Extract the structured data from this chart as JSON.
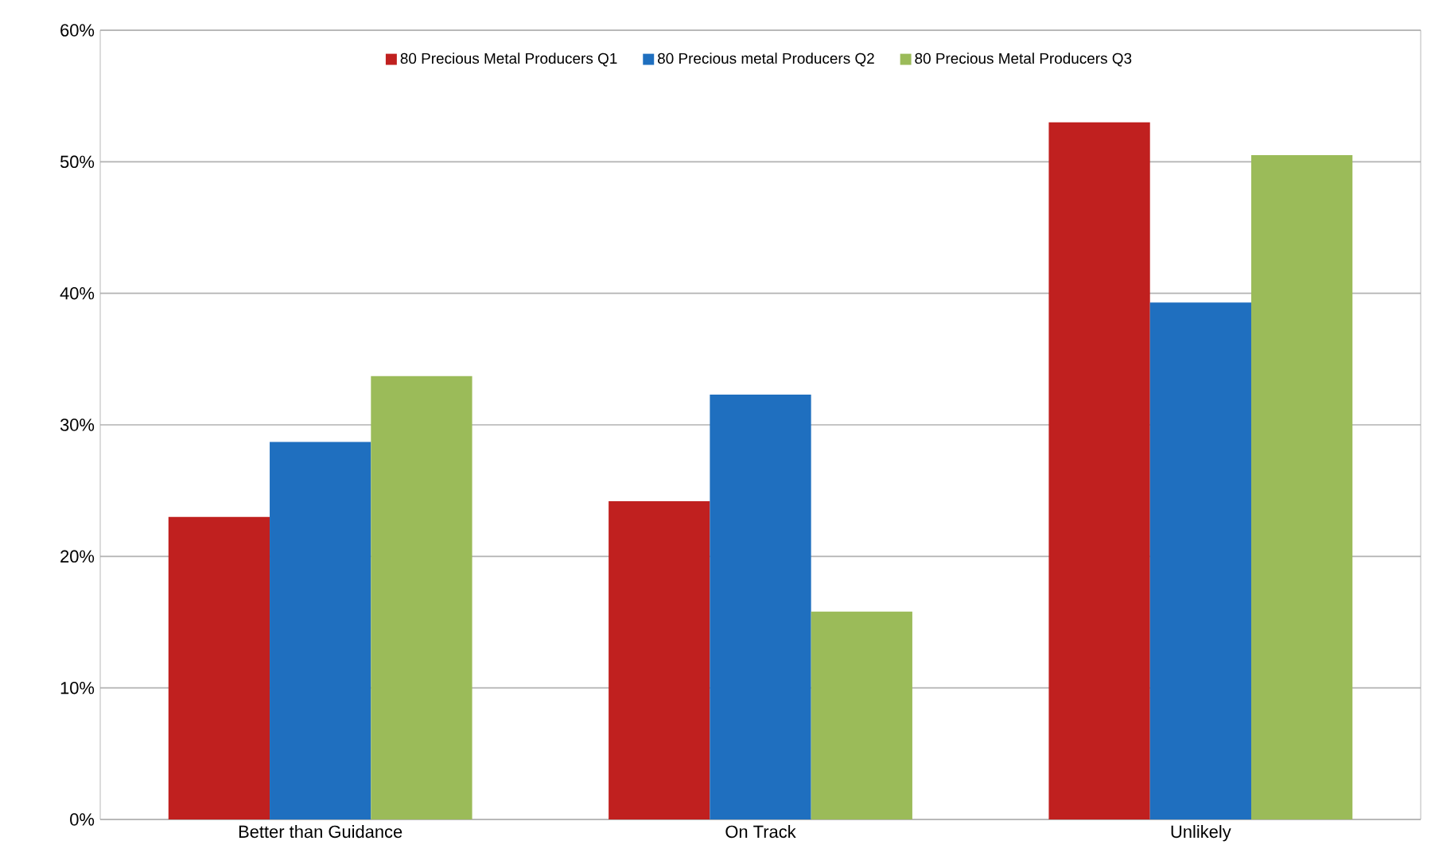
{
  "chart_data": {
    "type": "bar",
    "categories": [
      "Better than Guidance",
      "On Track",
      "Unlikely"
    ],
    "series": [
      {
        "name": "80 Precious Metal Producers Q1",
        "color": "#c0201f",
        "values": [
          23.0,
          24.2,
          53.0
        ]
      },
      {
        "name": "80 Precious metal Producers Q2",
        "color": "#1f6fbf",
        "values": [
          28.7,
          32.3,
          39.3
        ]
      },
      {
        "name": "80 Precious Metal Producers Q3",
        "color": "#9bbb59",
        "values": [
          33.7,
          15.8,
          50.5
        ]
      }
    ],
    "ylim": [
      0,
      60
    ],
    "yticks": [
      {
        "value": 0,
        "label": "0%"
      },
      {
        "value": 10,
        "label": "10%"
      },
      {
        "value": 20,
        "label": "20%"
      },
      {
        "value": 30,
        "label": "30%"
      },
      {
        "value": 40,
        "label": "40%"
      },
      {
        "value": 50,
        "label": "50%"
      },
      {
        "value": 60,
        "label": "60%"
      }
    ],
    "grid": "y",
    "legend": "top"
  }
}
